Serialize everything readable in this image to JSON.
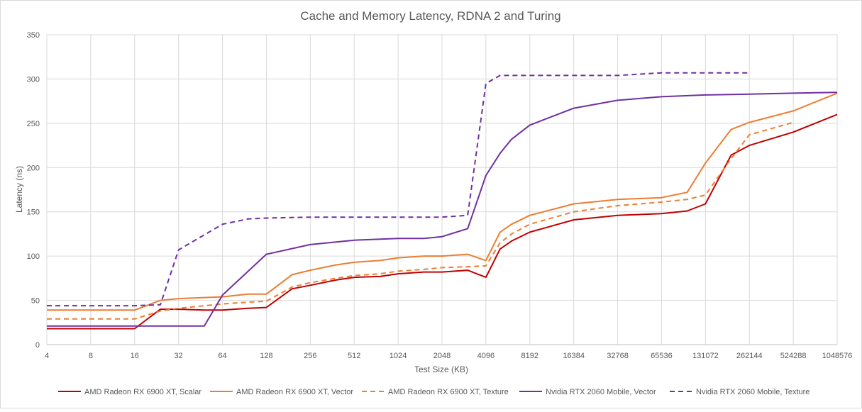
{
  "chart_data": {
    "type": "line",
    "title": "Cache and Memory Latency, RDNA 2 and Turing",
    "xlabel": "Test Size (KB)",
    "ylabel": "Latency (ns)",
    "x_scale": "log2",
    "x_ticks": [
      4,
      8,
      16,
      32,
      64,
      128,
      256,
      512,
      1024,
      2048,
      4096,
      8192,
      16384,
      32768,
      65536,
      131072,
      262144,
      524288,
      1048576
    ],
    "y_ticks": [
      0,
      50,
      100,
      150,
      200,
      250,
      300,
      350
    ],
    "ylim": [
      0,
      350
    ],
    "xlim": [
      4,
      1048576
    ],
    "grid": "vertical and horizontal",
    "legend_position": "bottom",
    "series": [
      {
        "name": "AMD Radeon RX 6900 XT, Scalar",
        "color": "#C00000",
        "dashed": false,
        "points": [
          [
            4,
            18
          ],
          [
            16,
            18
          ],
          [
            24,
            40
          ],
          [
            32,
            40
          ],
          [
            48,
            39
          ],
          [
            64,
            39
          ],
          [
            96,
            41
          ],
          [
            128,
            42
          ],
          [
            192,
            63
          ],
          [
            256,
            67
          ],
          [
            384,
            73
          ],
          [
            512,
            76
          ],
          [
            768,
            77
          ],
          [
            1024,
            80
          ],
          [
            1536,
            82
          ],
          [
            2048,
            82
          ],
          [
            3072,
            84
          ],
          [
            4096,
            76
          ],
          [
            5120,
            108
          ],
          [
            6144,
            117
          ],
          [
            8192,
            127
          ],
          [
            16384,
            141
          ],
          [
            32768,
            146
          ],
          [
            65536,
            148
          ],
          [
            98304,
            151
          ],
          [
            131072,
            159
          ],
          [
            196608,
            214
          ],
          [
            262144,
            225
          ],
          [
            524288,
            240
          ],
          [
            1048576,
            260
          ]
        ]
      },
      {
        "name": "AMD Radeon RX 6900 XT, Vector",
        "color": "#ED7D31",
        "dashed": false,
        "points": [
          [
            4,
            39
          ],
          [
            16,
            39
          ],
          [
            24,
            50
          ],
          [
            32,
            52
          ],
          [
            64,
            54
          ],
          [
            96,
            57
          ],
          [
            128,
            57
          ],
          [
            192,
            79
          ],
          [
            256,
            84
          ],
          [
            384,
            90
          ],
          [
            512,
            93
          ],
          [
            768,
            95
          ],
          [
            1024,
            98
          ],
          [
            1536,
            100
          ],
          [
            2048,
            100
          ],
          [
            3072,
            102
          ],
          [
            4096,
            95
          ],
          [
            5120,
            127
          ],
          [
            6144,
            136
          ],
          [
            8192,
            146
          ],
          [
            16384,
            159
          ],
          [
            32768,
            164
          ],
          [
            65536,
            166
          ],
          [
            98304,
            172
          ],
          [
            131072,
            205
          ],
          [
            196608,
            243
          ],
          [
            262144,
            251
          ],
          [
            524288,
            264
          ],
          [
            1048576,
            284
          ]
        ]
      },
      {
        "name": "AMD Radeon RX 6900 XT, Texture",
        "color": "#ED7D31",
        "dashed": true,
        "points": [
          [
            4,
            29
          ],
          [
            16,
            29
          ],
          [
            24,
            38
          ],
          [
            32,
            41
          ],
          [
            64,
            46
          ],
          [
            96,
            48
          ],
          [
            128,
            49
          ],
          [
            192,
            65
          ],
          [
            256,
            70
          ],
          [
            384,
            75
          ],
          [
            512,
            78
          ],
          [
            768,
            80
          ],
          [
            1024,
            83
          ],
          [
            1536,
            85
          ],
          [
            2048,
            87
          ],
          [
            3072,
            88
          ],
          [
            4096,
            89
          ],
          [
            5120,
            115
          ],
          [
            6144,
            125
          ],
          [
            8192,
            136
          ],
          [
            16384,
            150
          ],
          [
            32768,
            157
          ],
          [
            65536,
            161
          ],
          [
            98304,
            164
          ],
          [
            131072,
            169
          ],
          [
            196608,
            210
          ],
          [
            262144,
            237
          ],
          [
            524288,
            251
          ]
        ]
      },
      {
        "name": "Nvidia RTX 2060 Mobile, Vector",
        "color": "#7030A0",
        "dashed": false,
        "points": [
          [
            4,
            21
          ],
          [
            16,
            21
          ],
          [
            32,
            21
          ],
          [
            48,
            21
          ],
          [
            64,
            56
          ],
          [
            128,
            102
          ],
          [
            256,
            113
          ],
          [
            512,
            118
          ],
          [
            1024,
            120
          ],
          [
            1536,
            120
          ],
          [
            2048,
            122
          ],
          [
            3072,
            131
          ],
          [
            4096,
            191
          ],
          [
            5120,
            216
          ],
          [
            6144,
            232
          ],
          [
            8192,
            248
          ],
          [
            16384,
            267
          ],
          [
            32768,
            276
          ],
          [
            65536,
            280
          ],
          [
            131072,
            282
          ],
          [
            262144,
            283
          ],
          [
            524288,
            284
          ],
          [
            1048576,
            285
          ]
        ]
      },
      {
        "name": "Nvidia RTX 2060 Mobile, Texture",
        "color": "#7030A0",
        "dashed": true,
        "points": [
          [
            4,
            44
          ],
          [
            16,
            44
          ],
          [
            24,
            45
          ],
          [
            32,
            107
          ],
          [
            64,
            136
          ],
          [
            96,
            142
          ],
          [
            128,
            143
          ],
          [
            256,
            144
          ],
          [
            512,
            144
          ],
          [
            1024,
            144
          ],
          [
            2048,
            144
          ],
          [
            3072,
            146
          ],
          [
            4096,
            295
          ],
          [
            5120,
            304
          ],
          [
            8192,
            304
          ],
          [
            16384,
            304
          ],
          [
            32768,
            304
          ],
          [
            65536,
            307
          ],
          [
            131072,
            307
          ],
          [
            262144,
            307
          ]
        ]
      }
    ]
  }
}
